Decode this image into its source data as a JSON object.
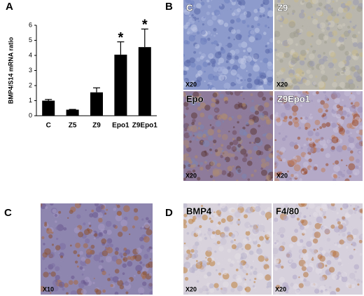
{
  "panel_labels": [
    "A",
    "B",
    "C",
    "D"
  ],
  "chart_data": {
    "type": "bar",
    "y_label": "BMP4/S14 mRNA ratio",
    "categories": [
      "C",
      "Z5",
      "Z9",
      "Epo1",
      "Z9Epo1"
    ],
    "values": [
      1.0,
      0.4,
      1.55,
      4.05,
      4.55
    ],
    "errors": [
      0.08,
      0.02,
      0.3,
      0.85,
      1.2
    ],
    "significance": [
      null,
      null,
      null,
      "*",
      "*"
    ],
    "color": "#000000",
    "ylim": [
      0,
      6
    ],
    "yticks": [
      0,
      1,
      2,
      3,
      4,
      5,
      6
    ]
  },
  "micrographs": {
    "B": [
      {
        "label": "C",
        "magnification": "X20"
      },
      {
        "label": "Z9",
        "magnification": "X20"
      },
      {
        "label": "Epo",
        "magnification": "X20"
      },
      {
        "label": "Z9Epo1",
        "magnification": "X20"
      }
    ],
    "C": [
      {
        "magnification": "X10"
      }
    ],
    "D": [
      {
        "label": "BMP4",
        "magnification": "X20"
      },
      {
        "label": "F4/80",
        "magnification": "X20"
      }
    ]
  }
}
